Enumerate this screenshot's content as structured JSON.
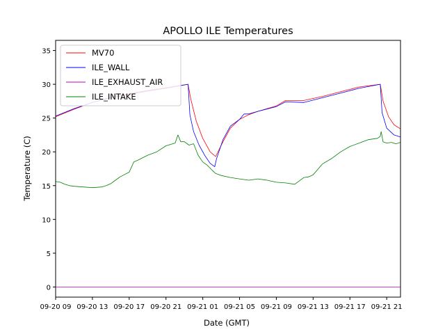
{
  "chart_data": {
    "type": "line",
    "title": "APOLLO ILE Temperatures",
    "xlabel": "Date (GMT)",
    "ylabel": "Temperature (C)",
    "xlim": [
      0,
      37.5
    ],
    "ylim": [
      -1.5,
      36.5
    ],
    "yticks": [
      0,
      5,
      10,
      15,
      20,
      25,
      30,
      35
    ],
    "xticks": [
      {
        "x": 0,
        "label": "09-20 09"
      },
      {
        "x": 4,
        "label": "09-20 13"
      },
      {
        "x": 8,
        "label": "09-20 17"
      },
      {
        "x": 12,
        "label": "09-20 21"
      },
      {
        "x": 16,
        "label": "09-21 01"
      },
      {
        "x": 20,
        "label": "09-21 05"
      },
      {
        "x": 24,
        "label": "09-21 09"
      },
      {
        "x": 28,
        "label": "09-21 13"
      },
      {
        "x": 32,
        "label": "09-21 17"
      },
      {
        "x": 36,
        "label": "09-21 21"
      }
    ],
    "legend_position": "top-left",
    "series": [
      {
        "name": "MV70",
        "color": "#ff0000",
        "x": [
          0,
          2,
          4,
          6,
          8,
          10,
          12,
          14.4,
          14.7,
          15.3,
          16,
          16.8,
          17.4,
          18.2,
          19,
          20,
          21,
          22,
          24,
          25,
          27,
          29,
          31,
          33,
          35.3,
          35.6,
          36.2,
          36.8,
          37.5
        ],
        "y": [
          25.2,
          26.3,
          27.3,
          28.1,
          28.6,
          29.1,
          29.5,
          30.0,
          27.8,
          24.5,
          22.0,
          20.0,
          19.3,
          21.5,
          23.5,
          24.8,
          25.5,
          26.0,
          26.8,
          27.6,
          27.6,
          28.2,
          28.9,
          29.6,
          30.0,
          27.5,
          25.2,
          24.0,
          23.4
        ]
      },
      {
        "name": "ILE_WALL",
        "color": "#0000ff",
        "x": [
          0,
          2,
          4,
          6,
          8,
          10,
          12,
          14.4,
          14.6,
          15.0,
          15.6,
          16.2,
          16.8,
          17.3,
          17.5,
          18.2,
          19,
          20,
          20.5,
          21,
          22,
          24,
          25,
          27,
          29,
          31,
          33,
          35.3,
          35.5,
          36.0,
          36.8,
          37.5
        ],
        "y": [
          25.3,
          26.4,
          27.3,
          28.0,
          28.5,
          29.0,
          29.4,
          30.0,
          25.5,
          23.0,
          21.0,
          19.5,
          18.3,
          17.8,
          19.0,
          21.8,
          23.8,
          24.8,
          25.6,
          25.6,
          26.0,
          26.7,
          27.4,
          27.3,
          28.0,
          28.7,
          29.4,
          30.0,
          25.8,
          23.5,
          22.5,
          22.2
        ]
      },
      {
        "name": "ILE_EXHAUST_AIR",
        "color": "#bf00bf",
        "x": [
          0,
          37.5
        ],
        "y": [
          0,
          0
        ]
      },
      {
        "name": "ILE_INTAKE",
        "color": "#008000",
        "x": [
          0,
          0.5,
          1,
          1.5,
          2,
          3,
          4,
          5,
          5.5,
          6,
          6.5,
          7,
          8,
          8.5,
          9,
          10,
          11,
          12,
          13,
          13.3,
          13.6,
          14,
          14.5,
          15,
          15.5,
          16,
          16.5,
          17,
          17.4,
          18,
          19,
          20,
          21,
          22,
          23,
          24,
          25,
          26,
          27,
          27.5,
          28,
          28.5,
          29,
          30,
          31,
          32,
          33,
          34,
          35,
          35.3,
          35.4,
          35.6,
          36,
          36.5,
          37,
          37.5
        ],
        "y": [
          15.6,
          15.5,
          15.2,
          15.0,
          14.9,
          14.8,
          14.7,
          14.8,
          15.0,
          15.3,
          15.8,
          16.3,
          17.0,
          18.5,
          18.8,
          19.5,
          20.0,
          20.9,
          21.3,
          22.5,
          21.5,
          21.5,
          21.0,
          21.2,
          19.5,
          18.5,
          18.0,
          17.3,
          16.8,
          16.5,
          16.2,
          16.0,
          15.8,
          16.0,
          15.8,
          15.5,
          15.4,
          15.2,
          16.2,
          16.3,
          16.6,
          17.4,
          18.2,
          19.0,
          20.0,
          20.8,
          21.3,
          21.8,
          22.0,
          22.3,
          23.0,
          21.5,
          21.3,
          21.4,
          21.2,
          21.4
        ]
      }
    ]
  }
}
